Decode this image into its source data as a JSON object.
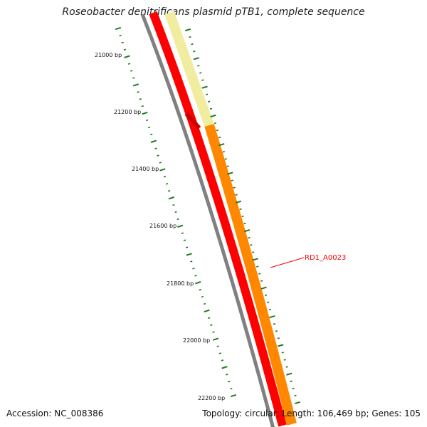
{
  "title": "Roseobacter denitrificans plasmid pTB1, complete sequence",
  "accession_text": "Accession: NC_008386",
  "summary_text": "Topology: circular; Length: 106,469 bp; Genes: 105",
  "scale_labels": [
    "21000 bp",
    "21200 bp",
    "21400 bp",
    "21600 bp",
    "21800 bp",
    "22000 bp",
    "22200 bp"
  ],
  "gene_label": "RD1_A0023",
  "colors": {
    "backbone": "#808080",
    "gene_red": "#ff0000",
    "gene_red_dark": "#cc0000",
    "gene_orange": "#ff8800",
    "gene_pale": "#f0eca0",
    "tick_green": "#1f7a1f",
    "label_red": "#ff0000"
  }
}
